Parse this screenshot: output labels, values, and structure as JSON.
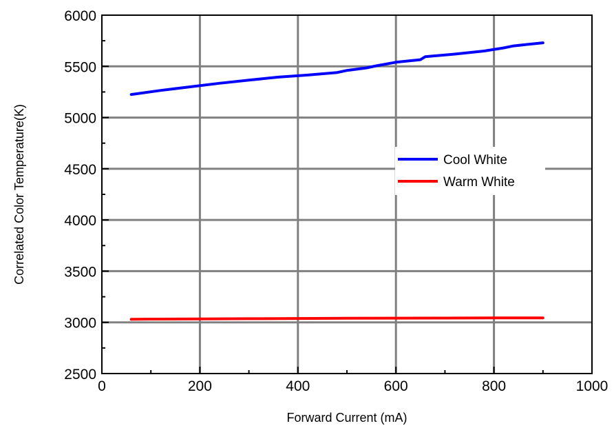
{
  "chart_data": {
    "type": "line",
    "title": "",
    "xlabel": "Forward Current (mA)",
    "ylabel": "Correlated Color Temperature(K)",
    "xlim": [
      0,
      1000
    ],
    "ylim": [
      2500,
      6000
    ],
    "x_ticks": [
      0,
      200,
      400,
      600,
      800,
      1000
    ],
    "y_ticks": [
      2500,
      3000,
      3500,
      4000,
      4500,
      5000,
      5500,
      6000
    ],
    "x_tick_labels": [
      "0",
      "200",
      "400",
      "600",
      "800",
      "1000"
    ],
    "y_tick_labels": [
      "2500",
      "3000",
      "3500",
      "4000",
      "4500",
      "5000",
      "5500",
      "6000"
    ],
    "grid": true,
    "legend_position": "center-right",
    "series": [
      {
        "name": "Cool White",
        "color": "#0000ff",
        "x": [
          60,
          120,
          180,
          240,
          300,
          360,
          420,
          480,
          500,
          540,
          560,
          600,
          650,
          660,
          720,
          780,
          820,
          840,
          900
        ],
        "y": [
          5225,
          5265,
          5300,
          5335,
          5365,
          5395,
          5415,
          5440,
          5460,
          5485,
          5505,
          5540,
          5565,
          5595,
          5620,
          5650,
          5680,
          5700,
          5730
        ]
      },
      {
        "name": "Warm White",
        "color": "#ff0000",
        "x": [
          60,
          100,
          200,
          300,
          400,
          500,
          600,
          700,
          800,
          900
        ],
        "y": [
          3030,
          3032,
          3034,
          3036,
          3038,
          3040,
          3041,
          3042,
          3043,
          3043
        ]
      }
    ]
  }
}
